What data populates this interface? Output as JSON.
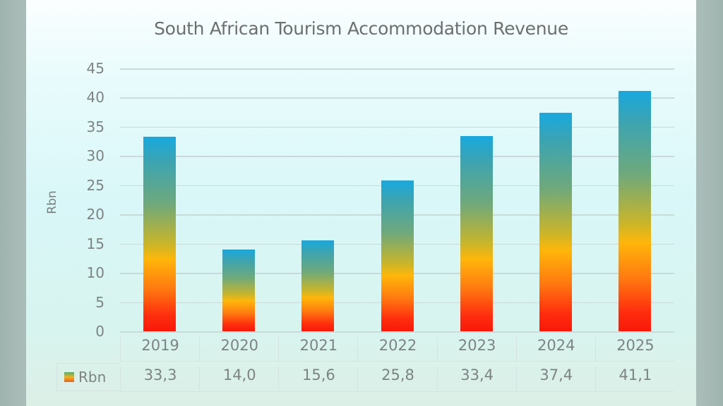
{
  "chart_data": {
    "type": "bar",
    "title": "South African Tourism Accommodation Revenue",
    "xlabel": "",
    "ylabel": "Rbn",
    "ylim": [
      0,
      45
    ],
    "yticks": [
      0,
      5,
      10,
      15,
      20,
      25,
      30,
      35,
      40,
      45
    ],
    "grid": true,
    "legend_position": "data-table",
    "categories": [
      "2019",
      "2020",
      "2021",
      "2022",
      "2023",
      "2024",
      "2025"
    ],
    "series": [
      {
        "name": "Rbn",
        "values": [
          33.3,
          14.0,
          15.6,
          25.8,
          33.4,
          37.4,
          41.1
        ]
      }
    ],
    "data_table": {
      "legend_label": "Rbn",
      "values_display": [
        "33,3",
        "14,0",
        "15,6",
        "25,8",
        "33,4",
        "37,4",
        "41,1"
      ]
    },
    "bar_gradient": [
      "#17a9df",
      "#70a97a",
      "#ffb60a",
      "#ff7a10",
      "#f8190a"
    ]
  },
  "ytick_labels": [
    "0",
    "5",
    "10",
    "15",
    "20",
    "25",
    "30",
    "35",
    "40",
    "45"
  ]
}
